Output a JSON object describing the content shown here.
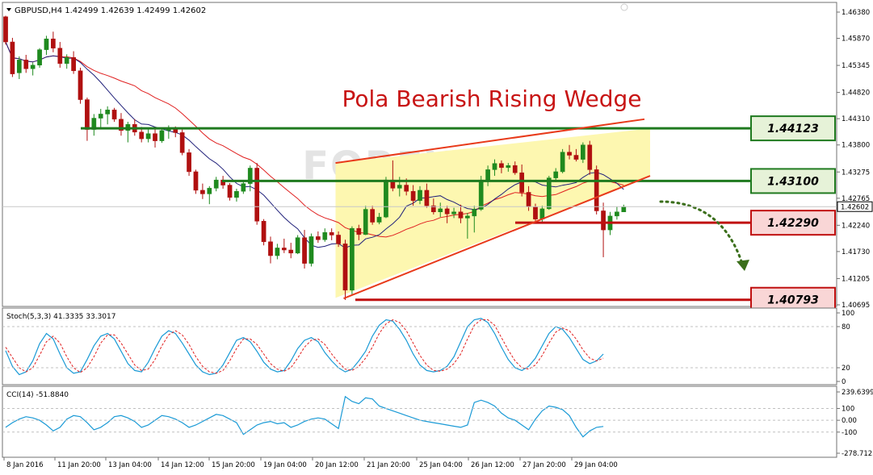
{
  "chart_data": [
    {
      "type": "candlestick",
      "header": "GBPUSD,H4  1.42499 1.42639 1.42499 1.42602",
      "title": "Pola Bearish Rising Wedge",
      "watermark": "FOREX.CO.ID",
      "ylim": [
        1.40695,
        1.4638
      ],
      "y_ticks": [
        "1.46380",
        "1.45870",
        "1.45345",
        "1.44820",
        "1.44310",
        "1.43800",
        "1.43275",
        "1.42765",
        "1.42240",
        "1.41730",
        "1.41205",
        "1.40695"
      ],
      "current_price": "1.42602",
      "x_ticks": [
        "8 Jan 2016",
        "11 Jan 20:00",
        "13 Jan 04:00",
        "14 Jan 12:00",
        "15 Jan 20:00",
        "19 Jan 04:00",
        "20 Jan 12:00",
        "21 Jan 20:00",
        "25 Jan 04:00",
        "26 Jan 12:00",
        "27 Jan 20:00",
        "29 Jan 04:00"
      ],
      "ohlc": [
        [
          1.4629,
          1.4631,
          1.4575,
          1.458
        ],
        [
          1.458,
          1.4588,
          1.4512,
          1.4518
        ],
        [
          1.452,
          1.4552,
          1.4508,
          1.4545
        ],
        [
          1.4545,
          1.4555,
          1.452,
          1.4528
        ],
        [
          1.4528,
          1.454,
          1.4515,
          1.4535
        ],
        [
          1.4535,
          1.4568,
          1.453,
          1.4565
        ],
        [
          1.4565,
          1.4592,
          1.4555,
          1.4586
        ],
        [
          1.4586,
          1.46,
          1.456,
          1.4568
        ],
        [
          1.4568,
          1.458,
          1.453,
          1.4538
        ],
        [
          1.4538,
          1.4556,
          1.4528,
          1.455
        ],
        [
          1.455,
          1.4562,
          1.4518,
          1.4524
        ],
        [
          1.4524,
          1.453,
          1.446,
          1.4468
        ],
        [
          1.4468,
          1.4472,
          1.4388,
          1.441
        ],
        [
          1.441,
          1.444,
          1.4398,
          1.4432
        ],
        [
          1.4432,
          1.445,
          1.4412,
          1.444
        ],
        [
          1.444,
          1.4455,
          1.442,
          1.4448
        ],
        [
          1.4448,
          1.4452,
          1.4425,
          1.443
        ],
        [
          1.443,
          1.4442,
          1.4398,
          1.4408
        ],
        [
          1.4408,
          1.4425,
          1.4385,
          1.442
        ],
        [
          1.442,
          1.443,
          1.4398,
          1.4405
        ],
        [
          1.4405,
          1.4415,
          1.4385,
          1.4392
        ],
        [
          1.4392,
          1.441,
          1.4385,
          1.4402
        ],
        [
          1.4402,
          1.4415,
          1.4375,
          1.4388
        ],
        [
          1.4388,
          1.4412,
          1.4384,
          1.4408
        ],
        [
          1.4408,
          1.4418,
          1.4392,
          1.4412
        ],
        [
          1.4412,
          1.4416,
          1.4395,
          1.4404
        ],
        [
          1.4404,
          1.441,
          1.436,
          1.4365
        ],
        [
          1.4365,
          1.4372,
          1.432,
          1.4328
        ],
        [
          1.4328,
          1.4332,
          1.4285,
          1.4292
        ],
        [
          1.4292,
          1.4305,
          1.4275,
          1.4285
        ],
        [
          1.4285,
          1.43,
          1.4265,
          1.4296
        ],
        [
          1.4296,
          1.4318,
          1.429,
          1.4312
        ],
        [
          1.4312,
          1.432,
          1.4295,
          1.4302
        ],
        [
          1.4302,
          1.4306,
          1.4272,
          1.4278
        ],
        [
          1.4278,
          1.4295,
          1.427,
          1.429
        ],
        [
          1.429,
          1.431,
          1.4285,
          1.4305
        ],
        [
          1.4305,
          1.434,
          1.429,
          1.4335
        ],
        [
          1.4335,
          1.4345,
          1.4225,
          1.4232
        ],
        [
          1.4232,
          1.4236,
          1.4185,
          1.4192
        ],
        [
          1.4192,
          1.4202,
          1.415,
          1.4165
        ],
        [
          1.4165,
          1.4188,
          1.4158,
          1.418
        ],
        [
          1.418,
          1.4198,
          1.417,
          1.4176
        ],
        [
          1.4176,
          1.419,
          1.416,
          1.417
        ],
        [
          1.417,
          1.4205,
          1.4168,
          1.42
        ],
        [
          1.42,
          1.4215,
          1.414,
          1.415
        ],
        [
          1.415,
          1.4208,
          1.4144,
          1.4202
        ],
        [
          1.4202,
          1.4212,
          1.419,
          1.4196
        ],
        [
          1.4196,
          1.4218,
          1.4192,
          1.421
        ],
        [
          1.421,
          1.4218,
          1.4195,
          1.4205
        ],
        [
          1.4205,
          1.4212,
          1.4182,
          1.4188
        ],
        [
          1.4188,
          1.4196,
          1.4079,
          1.4098
        ],
        [
          1.4098,
          1.4222,
          1.409,
          1.4218
        ],
        [
          1.4218,
          1.4225,
          1.4195,
          1.4206
        ],
        [
          1.4206,
          1.4262,
          1.4205,
          1.4255
        ],
        [
          1.4255,
          1.4262,
          1.4225,
          1.423
        ],
        [
          1.423,
          1.4248,
          1.4226,
          1.424
        ],
        [
          1.424,
          1.4318,
          1.4238,
          1.4312
        ],
        [
          1.4312,
          1.435,
          1.429,
          1.4296
        ],
        [
          1.4296,
          1.4318,
          1.428,
          1.4302
        ],
        [
          1.4302,
          1.4315,
          1.4282,
          1.429
        ],
        [
          1.429,
          1.4302,
          1.4262,
          1.4272
        ],
        [
          1.4272,
          1.43,
          1.4265,
          1.4292
        ],
        [
          1.4292,
          1.4305,
          1.4258,
          1.4262
        ],
        [
          1.4262,
          1.4276,
          1.4245,
          1.425
        ],
        [
          1.425,
          1.4268,
          1.424,
          1.4256
        ],
        [
          1.4256,
          1.4262,
          1.4228,
          1.4246
        ],
        [
          1.4246,
          1.4258,
          1.4238,
          1.425
        ],
        [
          1.425,
          1.4264,
          1.4228,
          1.4238
        ],
        [
          1.4238,
          1.4248,
          1.4198,
          1.4242
        ],
        [
          1.4242,
          1.4262,
          1.421,
          1.4255
        ],
        [
          1.4255,
          1.432,
          1.4252,
          1.4312
        ],
        [
          1.4312,
          1.434,
          1.43,
          1.4332
        ],
        [
          1.4332,
          1.4352,
          1.432,
          1.4344
        ],
        [
          1.4344,
          1.435,
          1.4325,
          1.4336
        ],
        [
          1.4336,
          1.4345,
          1.4328,
          1.434
        ],
        [
          1.434,
          1.4348,
          1.4322,
          1.4326
        ],
        [
          1.4326,
          1.4342,
          1.428,
          1.4288
        ],
        [
          1.4288,
          1.43,
          1.4252,
          1.426
        ],
        [
          1.426,
          1.4266,
          1.4228,
          1.4236
        ],
        [
          1.4236,
          1.4262,
          1.423,
          1.4256
        ],
        [
          1.4256,
          1.432,
          1.4254,
          1.4316
        ],
        [
          1.4316,
          1.4335,
          1.4308,
          1.4328
        ],
        [
          1.4328,
          1.4372,
          1.4325,
          1.4366
        ],
        [
          1.4366,
          1.438,
          1.4352,
          1.436
        ],
        [
          1.436,
          1.4372,
          1.4348,
          1.4352
        ],
        [
          1.4352,
          1.4385,
          1.4345,
          1.438
        ],
        [
          1.438,
          1.4388,
          1.4322,
          1.4332
        ],
        [
          1.4332,
          1.434,
          1.4245,
          1.4252
        ],
        [
          1.4252,
          1.4268,
          1.4162,
          1.4215
        ],
        [
          1.4215,
          1.425,
          1.4205,
          1.4242
        ],
        [
          1.4242,
          1.426,
          1.4235,
          1.425
        ],
        [
          1.425,
          1.4264,
          1.425,
          1.426
        ]
      ],
      "horizontal_levels": [
        {
          "label": "1.44123",
          "value": 1.44123,
          "role": "resistance"
        },
        {
          "label": "1.43100",
          "value": 1.431,
          "role": "resistance"
        },
        {
          "label": "1.42290",
          "value": 1.4229,
          "role": "support"
        },
        {
          "label": "1.40793",
          "value": 1.40793,
          "role": "support"
        }
      ],
      "colors": {
        "bull": "#1f8a1f",
        "bear": "#b01010",
        "ma_fast": "#20207a",
        "ma_slow": "#e02020",
        "wedge": "#e83a1a",
        "wedge_fill": "#fdf7b0",
        "green_level": "#1f7a1f",
        "red_level": "#c01010"
      }
    },
    {
      "type": "line",
      "label": "Stoch(5,3,3) 41.3335 33.3017",
      "ylim": [
        0,
        100
      ],
      "y_ticks": [
        "100",
        "80",
        "20",
        "0"
      ],
      "series": [
        {
          "values": [
            45,
            22,
            10,
            14,
            30,
            55,
            70,
            62,
            40,
            20,
            12,
            14,
            32,
            52,
            66,
            70,
            62,
            44,
            26,
            16,
            14,
            28,
            48,
            66,
            74,
            70,
            56,
            40,
            24,
            14,
            10,
            12,
            24,
            42,
            60,
            64,
            58,
            44,
            28,
            18,
            14,
            16,
            30,
            48,
            60,
            64,
            58,
            42,
            30,
            20,
            14,
            18,
            30,
            44,
            66,
            82,
            90,
            88,
            76,
            60,
            40,
            24,
            16,
            14,
            16,
            22,
            36,
            58,
            80,
            90,
            92,
            86,
            70,
            50,
            32,
            20,
            16,
            22,
            34,
            52,
            70,
            80,
            76,
            64,
            48,
            32,
            26,
            30,
            40
          ]
        },
        {
          "values": [
            50,
            35,
            20,
            14,
            20,
            38,
            58,
            66,
            56,
            36,
            20,
            13,
            20,
            36,
            56,
            68,
            68,
            56,
            40,
            24,
            16,
            18,
            32,
            52,
            68,
            74,
            68,
            54,
            36,
            22,
            14,
            12,
            16,
            30,
            48,
            62,
            62,
            54,
            40,
            26,
            18,
            15,
            20,
            34,
            50,
            60,
            62,
            54,
            40,
            28,
            18,
            16,
            22,
            34,
            50,
            70,
            84,
            90,
            86,
            74,
            56,
            38,
            24,
            16,
            15,
            18,
            26,
            40,
            62,
            82,
            90,
            90,
            82,
            64,
            46,
            30,
            20,
            18,
            24,
            38,
            56,
            72,
            78,
            74,
            62,
            46,
            34,
            30,
            34
          ]
        }
      ],
      "colors": [
        "#1a9ad6",
        "#e02020"
      ]
    },
    {
      "type": "line",
      "label": "CCI(14) -51.8840",
      "ylim": [
        -278.7125,
        239.6399
      ],
      "y_ticks": [
        "239.6399",
        "100",
        "0.00",
        "-100",
        "-278.7125"
      ],
      "series": [
        {
          "values": [
            -60,
            -20,
            10,
            30,
            20,
            0,
            -40,
            -90,
            -60,
            10,
            40,
            30,
            -20,
            -80,
            -60,
            -20,
            30,
            40,
            20,
            -10,
            -60,
            -40,
            0,
            40,
            30,
            10,
            -20,
            -60,
            -40,
            -10,
            20,
            50,
            40,
            10,
            -20,
            -120,
            -80,
            -40,
            -20,
            -10,
            -30,
            -20,
            -60,
            -40,
            -10,
            10,
            20,
            10,
            -30,
            -70,
            200,
            160,
            140,
            190,
            180,
            120,
            100,
            80,
            60,
            40,
            20,
            0,
            -10,
            -20,
            -30,
            -40,
            -50,
            -60,
            -40,
            150,
            170,
            150,
            120,
            60,
            20,
            0,
            -40,
            -80,
            10,
            80,
            120,
            110,
            90,
            40,
            -60,
            -140,
            -90,
            -60,
            -52
          ]
        }
      ],
      "colors": [
        "#1a9ad6"
      ]
    }
  ]
}
